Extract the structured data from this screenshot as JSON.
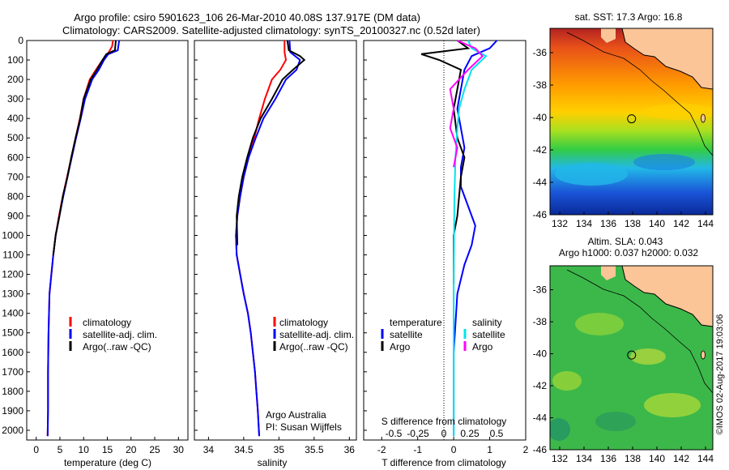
{
  "header": {
    "line1": "Argo profile: csiro 5901623_106 26-Mar-2010 40.08S 137.917E (DM data)",
    "line2": "Climatology: CARS2009. Satellite-adjusted climatology: synTS_20100327.nc (0.52d later)"
  },
  "colors": {
    "climatology": "#ff0000",
    "satellite": "#0000ff",
    "argo": "#000000",
    "sal_satellite": "#00e5ee",
    "sal_argo": "#ff00ff"
  },
  "chart_data": [
    {
      "type": "line",
      "id": "temperature",
      "xlabel": "temperature (deg C)",
      "xlim": [
        -2,
        32
      ],
      "ylim": [
        2050,
        0
      ],
      "xticks": [
        0,
        5,
        10,
        15,
        20,
        25,
        30
      ],
      "yticks": [
        0,
        100,
        200,
        300,
        400,
        500,
        600,
        700,
        800,
        900,
        1000,
        1100,
        1200,
        1300,
        1400,
        1500,
        1600,
        1700,
        1800,
        1900,
        2000
      ],
      "legend": [
        "climatology",
        "satellite-adj. clim.",
        "Argo(..raw -QC)"
      ],
      "series": [
        {
          "name": "climatology",
          "color": "#ff0000",
          "x": [
            16.2,
            16.0,
            15.3,
            14.0,
            12.6,
            11.3,
            10.0,
            9.2,
            8.3,
            7.4,
            6.5,
            5.6,
            4.8,
            4.1,
            3.6,
            3.2,
            2.8,
            2.7,
            2.6,
            2.5,
            2.5,
            2.4
          ],
          "y": [
            0,
            30,
            60,
            100,
            150,
            200,
            300,
            400,
            500,
            600,
            700,
            800,
            900,
            1000,
            1100,
            1200,
            1300,
            1400,
            1500,
            1700,
            1900,
            2030
          ]
        },
        {
          "name": "satellite-adj. clim.",
          "color": "#0000ff",
          "x": [
            17.5,
            17.2,
            15.2,
            14.3,
            13.2,
            11.8,
            10.3,
            9.4,
            8.4,
            7.5,
            6.6,
            5.7,
            4.9,
            4.1,
            3.6,
            3.2,
            2.8,
            2.7,
            2.6,
            2.5,
            2.5,
            2.4
          ],
          "y": [
            0,
            50,
            70,
            100,
            150,
            200,
            300,
            400,
            500,
            600,
            700,
            800,
            900,
            1000,
            1100,
            1200,
            1300,
            1400,
            1500,
            1700,
            1900,
            2030
          ]
        },
        {
          "name": "Argo(..raw -QC)",
          "color": "#000000",
          "x": [
            16.8,
            16.6,
            14.8,
            14.0,
            12.8,
            11.5,
            10.0,
            9.3,
            8.3,
            7.4,
            6.6,
            5.6,
            4.9,
            4.1,
            3.6
          ],
          "y": [
            0,
            50,
            70,
            100,
            150,
            200,
            300,
            400,
            500,
            600,
            700,
            800,
            900,
            1000,
            1100
          ]
        }
      ]
    },
    {
      "type": "line",
      "id": "salinity",
      "xlabel": "salinity",
      "xlim": [
        33.8,
        36.1
      ],
      "ylim": [
        2050,
        0
      ],
      "xticks": [
        34,
        34.5,
        35,
        35.5,
        36
      ],
      "legend": [
        "climatology",
        "satellite-adj. clim.",
        "Argo(..raw -QC)"
      ],
      "annotation": [
        "Argo Australia",
        "PI: Susan Wijffels"
      ],
      "series": [
        {
          "name": "climatology",
          "color": "#ff0000",
          "x": [
            35.08,
            35.08,
            35.1,
            35.02,
            34.9,
            34.8,
            34.72,
            34.65,
            34.57,
            34.5,
            34.45,
            34.41,
            34.39,
            34.4,
            34.45,
            34.5,
            34.56,
            34.6,
            34.63,
            34.66,
            34.68,
            34.7,
            34.72
          ],
          "y": [
            0,
            60,
            100,
            150,
            200,
            300,
            400,
            500,
            600,
            700,
            800,
            900,
            1000,
            1100,
            1200,
            1300,
            1400,
            1500,
            1600,
            1700,
            1800,
            1900,
            2030
          ]
        },
        {
          "name": "satellite-adj. clim.",
          "color": "#0000ff",
          "x": [
            35.15,
            35.16,
            35.3,
            35.25,
            35.1,
            34.95,
            34.78,
            34.67,
            34.57,
            34.5,
            34.45,
            34.41,
            34.39,
            34.4,
            34.45,
            34.5,
            34.56,
            34.6,
            34.63,
            34.66,
            34.68,
            34.7,
            34.72
          ],
          "y": [
            0,
            60,
            100,
            150,
            200,
            300,
            400,
            500,
            600,
            700,
            800,
            900,
            1000,
            1100,
            1200,
            1300,
            1400,
            1500,
            1600,
            1700,
            1800,
            1900,
            2030
          ]
        },
        {
          "name": "Argo(..raw -QC)",
          "color": "#000000",
          "x": [
            35.12,
            35.14,
            35.3,
            35.36,
            35.2,
            35.05,
            34.9,
            34.74,
            34.63,
            34.55,
            34.48,
            34.43,
            34.4,
            34.41
          ],
          "y": [
            0,
            50,
            80,
            100,
            150,
            200,
            300,
            400,
            500,
            600,
            700,
            800,
            900,
            1050
          ]
        }
      ]
    },
    {
      "type": "line",
      "id": "difference",
      "xlabel": "T difference from climatology",
      "xlabel2": "S difference from climatology",
      "xlim": [
        -2.5,
        2.0
      ],
      "ylim": [
        2050,
        0
      ],
      "xticks": [
        -2,
        -1,
        0,
        1,
        2
      ],
      "xticks2": [
        "-0.5",
        "-0.25",
        "0",
        "0.25",
        "0.5"
      ],
      "legend_temperature": "temperature",
      "legend_salinity": "salinity",
      "legend_items": [
        "satellite",
        "Argo",
        "satellite",
        "Argo"
      ],
      "series": [
        {
          "name": "T satellite",
          "color": "#0000ff",
          "x": [
            1.2,
            1.0,
            0.5,
            0.3,
            0.2,
            0.1,
            0.2,
            0.3,
            0.2,
            0.2,
            0.4,
            0.6,
            0.5,
            0.3,
            0.1,
            0,
            0
          ],
          "y": [
            0,
            40,
            80,
            150,
            250,
            350,
            450,
            550,
            650,
            750,
            850,
            950,
            1050,
            1150,
            1300,
            1600,
            2030
          ]
        },
        {
          "name": "T Argo",
          "color": "#000000",
          "x": [
            0.1,
            0.4,
            -0.9,
            -0.4,
            0.2,
            0.1,
            0.0,
            0.1,
            0.3,
            0.2,
            0.1,
            0.0,
            0.0
          ],
          "y": [
            0,
            40,
            70,
            100,
            150,
            250,
            350,
            500,
            600,
            700,
            900,
            1000,
            1250
          ]
        },
        {
          "name": "S satellite",
          "color": "#00e5ee",
          "x": [
            0.4,
            0.5,
            0.9,
            0.5,
            0.3,
            0.15,
            0.1,
            0.05,
            0.02,
            0,
            0
          ],
          "y": [
            0,
            40,
            80,
            150,
            250,
            350,
            450,
            600,
            800,
            1200,
            2030
          ]
        },
        {
          "name": "S Argo",
          "color": "#ff00ff",
          "x": [
            0.1,
            0.6,
            0.8,
            0.4,
            -0.1,
            0.0,
            -0.1,
            0.1,
            0.0
          ],
          "y": [
            0,
            40,
            80,
            150,
            250,
            350,
            450,
            550,
            650
          ]
        }
      ]
    }
  ],
  "maps": [
    {
      "id": "sst",
      "title": "sat. SST: 17.3 Argo: 16.8",
      "xticks": [
        "132",
        "134",
        "136",
        "138",
        "140",
        "142",
        "144"
      ],
      "yticks": [
        "-36",
        "-38",
        "-40",
        "-42",
        "-44",
        "-46"
      ],
      "xlim": [
        131.2,
        144.6
      ],
      "ylim": [
        -46,
        -34.5
      ],
      "float_lon": 137.917,
      "float_lat": -40.08
    },
    {
      "id": "sla",
      "title": "Altim. SLA: 0.043",
      "subtitle": "Argo h1000: 0.037 h2000: 0.032",
      "xticks": [
        "132",
        "134",
        "136",
        "138",
        "140",
        "142",
        "144"
      ],
      "yticks": [
        "-36",
        "-38",
        "-40",
        "-42",
        "-44",
        "-46"
      ],
      "xlim": [
        131.2,
        144.6
      ],
      "ylim": [
        -46,
        -34.5
      ],
      "float_lon": 137.917,
      "float_lat": -40.08
    }
  ],
  "footer": {
    "credit": "©IMOS 02-Aug-2017 19:03:06"
  }
}
